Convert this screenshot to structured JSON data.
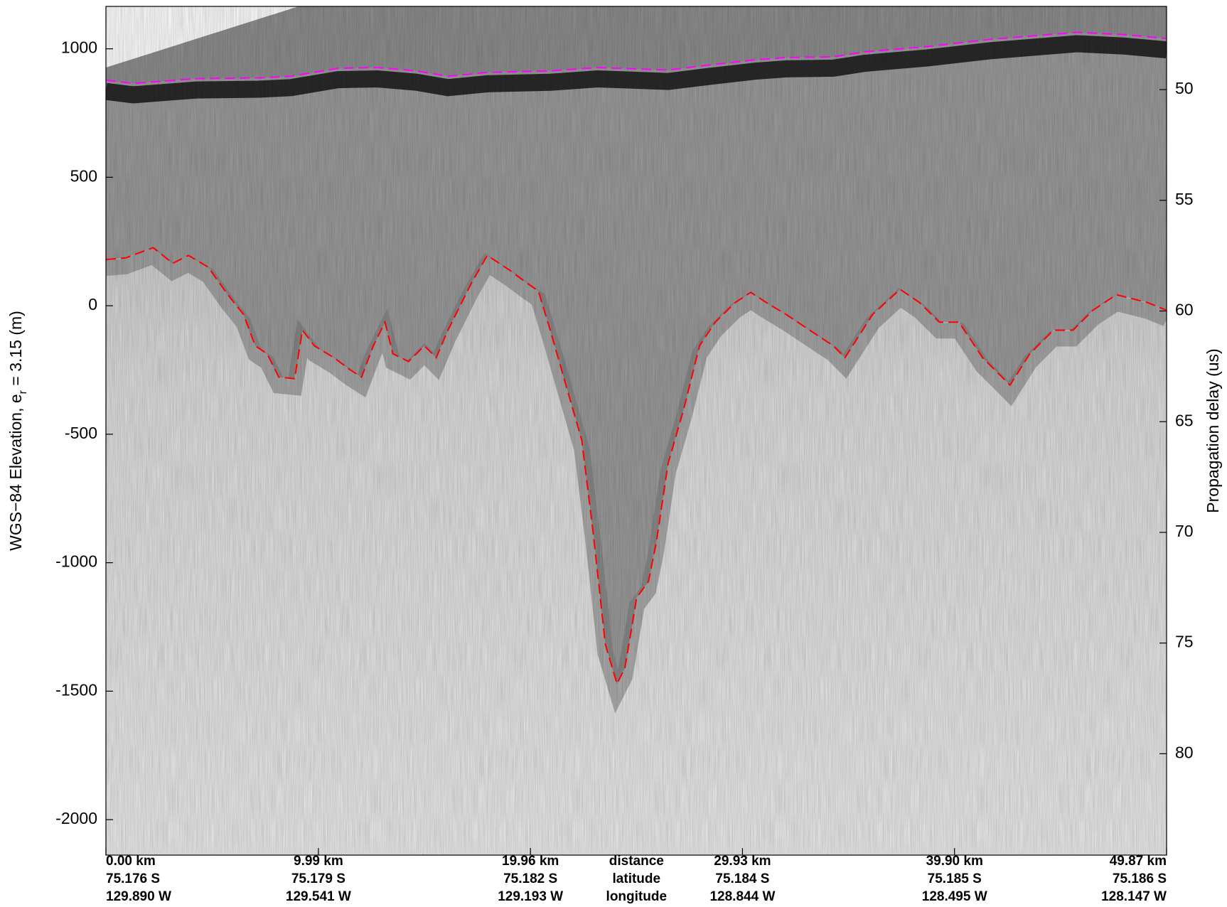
{
  "chart_data": {
    "type": "line",
    "ylabel": [
      "WGS−84 Elevation, e",
      "r",
      " = 3.15 (m)"
    ],
    "y2label": "Propagation delay (us)",
    "xlim": [
      0,
      49.87
    ],
    "xticks": [
      {
        "value": 0,
        "label": "0.00 km"
      },
      {
        "value": 9.99,
        "label": "9.99 km"
      },
      {
        "value": 19.96,
        "label": "19.96 km"
      },
      {
        "value": 29.93,
        "label": "29.93 km"
      },
      {
        "value": 39.9,
        "label": "39.90 km"
      },
      {
        "value": 49.87,
        "label": "49.87 km"
      }
    ],
    "x_latitudes": [
      "75.176 S",
      "75.179 S",
      "75.182 S",
      "75.184 S",
      "75.185 S",
      "75.186 S"
    ],
    "x_longitudes": [
      "129.890 W",
      "129.541 W",
      "129.193 W",
      "128.844 W",
      "128.495 W",
      "128.147 W"
    ],
    "x_row_labels": [
      "distance",
      "latitude",
      "longitude"
    ],
    "ylim": [
      -2138,
      1165
    ],
    "yticks": [
      -2000,
      -1500,
      -1000,
      -500,
      0,
      500,
      1000
    ],
    "y2lim": [
      84.58,
      46.24
    ],
    "y2ticks": [
      50,
      55,
      60,
      65,
      70,
      75,
      80
    ],
    "series": [
      {
        "color": "#ff00ff",
        "x": [
          0,
          1.29,
          4.25,
          7.21,
          8.69,
          10.91,
          12.76,
          14.6,
          16.08,
          17.93,
          20.89,
          23.11,
          26.43,
          28.28,
          30.5,
          31.98,
          34.2,
          35.68,
          38.64,
          41.6,
          45.66,
          47.88,
          49.87
        ],
        "values": [
          878,
          865,
          884,
          887,
          893,
          924,
          927,
          914,
          893,
          908,
          914,
          927,
          917,
          936,
          957,
          966,
          969,
          988,
          1009,
          1037,
          1064,
          1055,
          1040
        ]
      },
      {
        "color": "#ff0000",
        "x": [
          0,
          0.92,
          2.22,
          3.14,
          3.88,
          4.81,
          5.73,
          6.47,
          7.02,
          7.58,
          8.13,
          8.87,
          9.24,
          9.8,
          10.72,
          11.46,
          12.02,
          12.57,
          13.12,
          13.49,
          14.23,
          14.97,
          15.53,
          16.08,
          17.19,
          17.93,
          19.04,
          19.78,
          20.33,
          20.89,
          21.63,
          22.37,
          22.92,
          23.48,
          24.03,
          24.4,
          24.96,
          25.51,
          25.88,
          26.43,
          27.17,
          27.91,
          28.65,
          29.58,
          30.32,
          31.06,
          31.98,
          33.09,
          34.2,
          34.75,
          36.05,
          37.34,
          38.26,
          39.19,
          40.11,
          41.22,
          42.51,
          43.44,
          44.55,
          45.47,
          46.4,
          47.51,
          48.99,
          49.87
        ],
        "values": [
          180,
          186,
          226,
          165,
          196,
          150,
          43,
          -34,
          -156,
          -187,
          -278,
          -284,
          -95,
          -156,
          -202,
          -248,
          -278,
          -156,
          -64,
          -187,
          -217,
          -156,
          -202,
          -95,
          89,
          196,
          135,
          89,
          58,
          -95,
          -309,
          -523,
          -890,
          -1318,
          -1471,
          -1410,
          -1135,
          -1073,
          -920,
          -615,
          -401,
          -156,
          -64,
          12,
          52,
          12,
          -34,
          -95,
          -156,
          -202,
          -34,
          64,
          12,
          -64,
          -64,
          -202,
          -309,
          -187,
          -95,
          -95,
          -18,
          43,
          12,
          -18
        ]
      }
    ]
  }
}
